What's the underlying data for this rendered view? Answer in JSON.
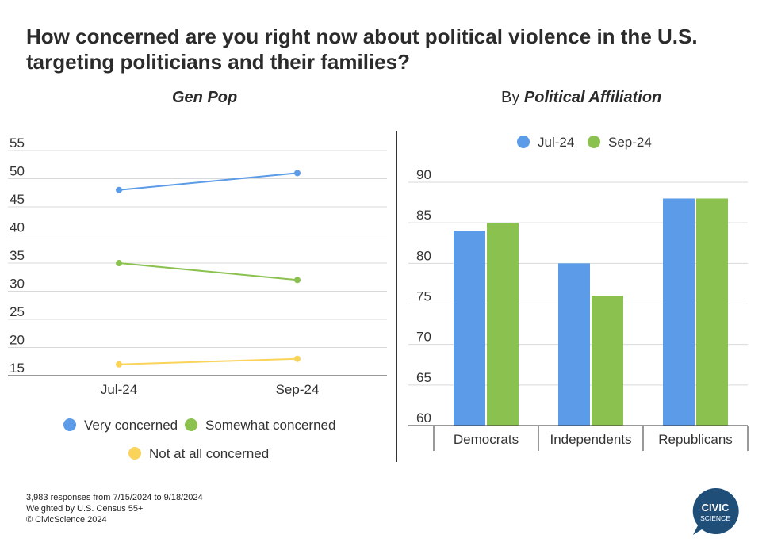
{
  "title": "How concerned are you right now about political violence in the U.S. targeting politicians and their families?",
  "left_panel": {
    "title": "Gen Pop"
  },
  "right_panel": {
    "title_prefix": "By ",
    "title_emphasis": "Political Affiliation"
  },
  "chart_data": [
    {
      "type": "line",
      "title": "Gen Pop",
      "x": [
        "Jul-24",
        "Sep-24"
      ],
      "ylim": [
        15,
        55
      ],
      "yticks": [
        15,
        20,
        25,
        30,
        35,
        40,
        45,
        50,
        55
      ],
      "grid": true,
      "legend": "bottom",
      "series": [
        {
          "name": "Very concerned",
          "values": [
            48,
            51
          ],
          "color": "#5B9BE8"
        },
        {
          "name": "Somewhat concerned",
          "values": [
            35,
            32
          ],
          "color": "#8BC24F"
        },
        {
          "name": "Not at all concerned",
          "values": [
            17,
            18
          ],
          "color": "#F9D35A"
        }
      ]
    },
    {
      "type": "bar",
      "title": "By Political Affiliation",
      "categories": [
        "Democrats",
        "Independents",
        "Republicans"
      ],
      "ylim": [
        60,
        90
      ],
      "yticks": [
        60,
        65,
        70,
        75,
        80,
        85,
        90
      ],
      "grid": true,
      "legend": "top",
      "series": [
        {
          "name": "Jul-24",
          "values": [
            84,
            80,
            88
          ],
          "color": "#5B9BE8"
        },
        {
          "name": "Sep-24",
          "values": [
            85,
            76,
            88
          ],
          "color": "#8BC24F"
        }
      ]
    }
  ],
  "footer": {
    "line1": "3,983 responses from 7/15/2024 to 9/18/2024",
    "line2": "Weighted by U.S. Census 55+",
    "line3": "© CivicScience 2024"
  },
  "logo": {
    "line1": "CIVIC",
    "line2": "SCIENCE",
    "color": "#1F4E79"
  }
}
